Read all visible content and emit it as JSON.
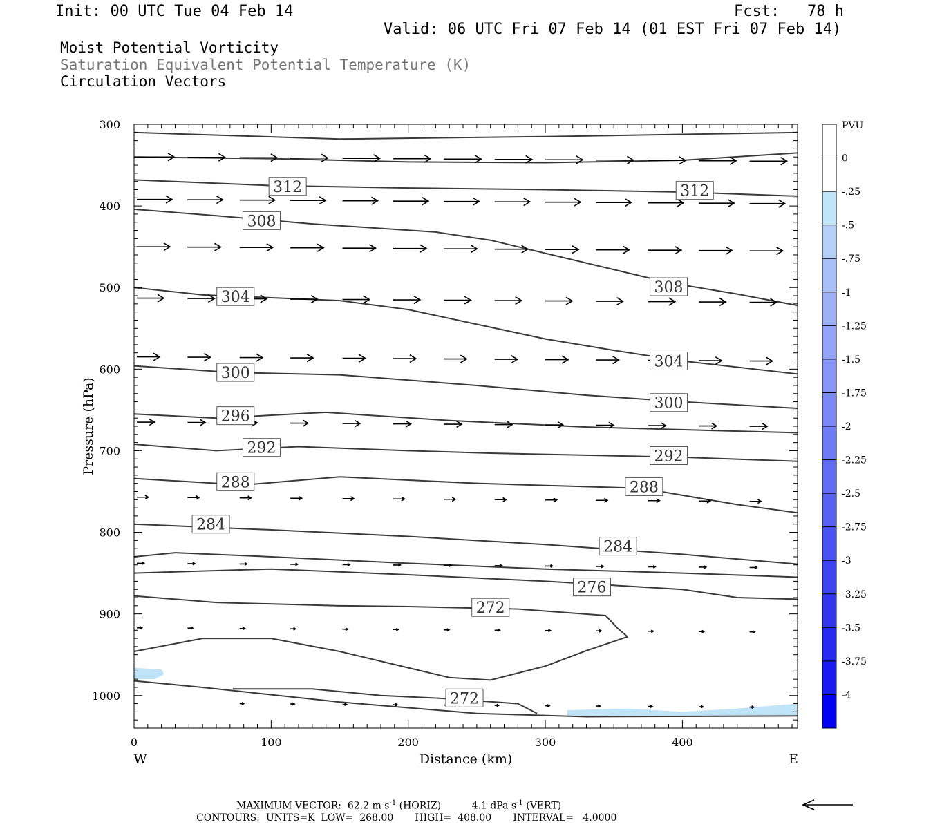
{
  "header": {
    "init": "Init: 00 UTC Tue 04 Feb 14",
    "fcst": "Fcst:   78 h",
    "valid": "Valid: 06 UTC Fri 07 Feb 14 (01 EST Fri 07 Feb 14)",
    "field1": "Moist Potential Vorticity",
    "field2": "Saturation Equivalent Potential Temperature (K)",
    "field3": "Circulation Vectors"
  },
  "colors": {
    "contour": "#3a3a3a",
    "vector": "#000000",
    "pv_light": "#bfe3f7"
  },
  "chart_data": {
    "type": "cross-section",
    "xlabel": "Distance (km)",
    "ylabel": "Pressure (hPa)",
    "xlim": [
      0,
      484
    ],
    "ylim": [
      300,
      1040
    ],
    "x_ticks": [
      0,
      100,
      200,
      300,
      400
    ],
    "y_ticks": [
      300,
      400,
      500,
      600,
      700,
      800,
      900,
      1000
    ],
    "x_end_labels": {
      "left": "W",
      "right": "E"
    },
    "contour_labels": [
      {
        "value": "312",
        "x": 112,
        "p": 376
      },
      {
        "value": "312",
        "x": 409,
        "p": 381
      },
      {
        "value": "308",
        "x": 93,
        "p": 418
      },
      {
        "value": "308",
        "x": 390,
        "p": 499
      },
      {
        "value": "304",
        "x": 74,
        "p": 511
      },
      {
        "value": "304",
        "x": 390,
        "p": 590
      },
      {
        "value": "300",
        "x": 74,
        "p": 604
      },
      {
        "value": "300",
        "x": 390,
        "p": 641
      },
      {
        "value": "296",
        "x": 74,
        "p": 657
      },
      {
        "value": "292",
        "x": 93,
        "p": 696
      },
      {
        "value": "292",
        "x": 390,
        "p": 706
      },
      {
        "value": "288",
        "x": 74,
        "p": 738
      },
      {
        "value": "288",
        "x": 372,
        "p": 744
      },
      {
        "value": "284",
        "x": 56,
        "p": 790
      },
      {
        "value": "284",
        "x": 353,
        "p": 817
      },
      {
        "value": "276",
        "x": 334,
        "p": 867
      },
      {
        "value": "272",
        "x": 260,
        "p": 892
      },
      {
        "value": "272",
        "x": 241,
        "p": 1003
      }
    ],
    "contours": [
      {
        "pts": [
          [
            0,
            310
          ],
          [
            150,
            318
          ],
          [
            300,
            315
          ],
          [
            484,
            310
          ]
        ]
      },
      {
        "pts": [
          [
            0,
            340
          ],
          [
            100,
            342
          ],
          [
            200,
            346
          ],
          [
            300,
            347
          ],
          [
            400,
            344
          ],
          [
            484,
            335
          ]
        ]
      },
      {
        "pts": [
          [
            0,
            368
          ],
          [
            100,
            375
          ],
          [
            200,
            378
          ],
          [
            300,
            380
          ],
          [
            400,
            383
          ],
          [
            484,
            388
          ]
        ]
      },
      {
        "pts": [
          [
            0,
            404
          ],
          [
            60,
            412
          ],
          [
            130,
            422
          ],
          [
            220,
            432
          ],
          [
            260,
            442
          ],
          [
            300,
            458
          ],
          [
            350,
            478
          ],
          [
            390,
            494
          ],
          [
            440,
            508
          ],
          [
            484,
            522
          ]
        ]
      },
      {
        "pts": [
          [
            0,
            500
          ],
          [
            50,
            509
          ],
          [
            150,
            516
          ],
          [
            200,
            527
          ],
          [
            250,
            545
          ],
          [
            300,
            563
          ],
          [
            350,
            577
          ],
          [
            400,
            590
          ],
          [
            484,
            606
          ]
        ]
      },
      {
        "pts": [
          [
            0,
            596
          ],
          [
            70,
            604
          ],
          [
            150,
            607
          ],
          [
            250,
            620
          ],
          [
            330,
            632
          ],
          [
            400,
            640
          ],
          [
            484,
            648
          ]
        ]
      },
      {
        "pts": [
          [
            0,
            655
          ],
          [
            60,
            660
          ],
          [
            140,
            653
          ],
          [
            230,
            663
          ],
          [
            330,
            671
          ],
          [
            484,
            678
          ]
        ]
      },
      {
        "pts": [
          [
            0,
            692
          ],
          [
            60,
            700
          ],
          [
            120,
            695
          ],
          [
            200,
            700
          ],
          [
            260,
            703
          ],
          [
            400,
            708
          ],
          [
            484,
            713
          ]
        ]
      },
      {
        "pts": [
          [
            0,
            734
          ],
          [
            80,
            742
          ],
          [
            150,
            732
          ],
          [
            250,
            740
          ],
          [
            370,
            746
          ],
          [
            440,
            766
          ],
          [
            484,
            776
          ]
        ]
      },
      {
        "pts": [
          [
            0,
            790
          ],
          [
            100,
            797
          ],
          [
            200,
            805
          ],
          [
            300,
            815
          ],
          [
            400,
            827
          ],
          [
            484,
            839
          ]
        ]
      },
      {
        "pts": [
          [
            0,
            830
          ],
          [
            30,
            825
          ],
          [
            100,
            830
          ],
          [
            200,
            838
          ],
          [
            300,
            845
          ],
          [
            400,
            850
          ],
          [
            484,
            855
          ]
        ]
      },
      {
        "pts": [
          [
            0,
            850
          ],
          [
            100,
            845
          ],
          [
            200,
            852
          ],
          [
            300,
            860
          ],
          [
            400,
            870
          ],
          [
            440,
            880
          ],
          [
            484,
            882
          ]
        ]
      },
      {
        "pts": [
          [
            0,
            878
          ],
          [
            60,
            886
          ],
          [
            150,
            890
          ],
          [
            200,
            891
          ],
          [
            280,
            894
          ],
          [
            344,
            902
          ],
          [
            353,
            918
          ],
          [
            360,
            928
          ]
        ]
      },
      {
        "pts": [
          [
            360,
            928
          ],
          [
            330,
            945
          ],
          [
            300,
            964
          ],
          [
            260,
            981
          ],
          [
            230,
            978
          ],
          [
            200,
            966
          ],
          [
            150,
            946
          ],
          [
            100,
            930
          ],
          [
            50,
            930
          ],
          [
            0,
            946
          ]
        ]
      },
      {
        "pts": [
          [
            0,
            982
          ],
          [
            50,
            990
          ],
          [
            150,
            1008
          ],
          [
            250,
            1022
          ],
          [
            330,
            1026
          ],
          [
            484,
            1025
          ]
        ]
      },
      {
        "pts": [
          [
            72,
            992
          ],
          [
            130,
            992
          ],
          [
            180,
            1000
          ],
          [
            230,
            1004
          ],
          [
            280,
            1010
          ],
          [
            294,
            1022
          ]
        ]
      }
    ],
    "shading": [
      {
        "level": "-.25 to 0",
        "pts": [
          [
            0,
            966
          ],
          [
            20,
            968
          ],
          [
            22,
            974
          ],
          [
            15,
            980
          ],
          [
            0,
            980
          ]
        ]
      },
      {
        "level": "-.25 to 0",
        "pts": [
          [
            316,
            1018
          ],
          [
            360,
            1016
          ],
          [
            400,
            1020
          ],
          [
            440,
            1016
          ],
          [
            484,
            1010
          ],
          [
            484,
            1025
          ],
          [
            316,
            1025
          ]
        ]
      }
    ],
    "vector_rows": [
      {
        "p": 340,
        "x": [
          0,
          37,
          75,
          112,
          150,
          187,
          224,
          261,
          298,
          335,
          373,
          410,
          447
        ],
        "len": 36
      },
      {
        "p": 392,
        "x": [
          0,
          37,
          75,
          112,
          150,
          187,
          224,
          261,
          298,
          335,
          373,
          410,
          447
        ],
        "len": 34
      },
      {
        "p": 450,
        "x": [
          0,
          37,
          75,
          112,
          150,
          187,
          224,
          261,
          298,
          335,
          373,
          410,
          447
        ],
        "len": 32
      },
      {
        "p": 513,
        "x": [
          0,
          37,
          75,
          112,
          150,
          187,
          224,
          261,
          298,
          335,
          373,
          410,
          447
        ],
        "len": 26
      },
      {
        "p": 585,
        "x": [
          0,
          37,
          75,
          112,
          150,
          187,
          224,
          261,
          298,
          335,
          373,
          410,
          447
        ],
        "len": 22
      },
      {
        "p": 665,
        "x": [
          0,
          37,
          75,
          112,
          150,
          187,
          224,
          261,
          298,
          335,
          373,
          410,
          447
        ],
        "len": 17
      },
      {
        "p": 757,
        "x": [
          0,
          37,
          75,
          112,
          150,
          187,
          224,
          261,
          298,
          335,
          373,
          410,
          447
        ],
        "len": 11
      },
      {
        "p": 838,
        "x": [
          0,
          37,
          75,
          112,
          150,
          187,
          224,
          261,
          298,
          335,
          373,
          410,
          447
        ],
        "len": 7
      },
      {
        "p": 917,
        "x": [
          0,
          37,
          75,
          112,
          150,
          187,
          224,
          261,
          298,
          335,
          373,
          410,
          447
        ],
        "len": 5
      },
      {
        "p": 1010,
        "x": [
          75,
          112,
          150,
          187,
          224,
          261,
          298,
          335,
          373,
          410,
          447
        ],
        "len": 4
      }
    ],
    "colorbar": {
      "title": "PVU",
      "labels": [
        "0",
        "-.25",
        "-.5",
        "-.75",
        "-1",
        "-1.25",
        "-1.5",
        "-1.75",
        "-2",
        "-2.25",
        "-2.5",
        "-2.75",
        "-3",
        "-3.25",
        "-3.5",
        "-3.75",
        "-4"
      ],
      "colors": [
        "#ffffff",
        "#ffffff",
        "#bfe3f7",
        "#b3d0f7",
        "#a8c0f7",
        "#9eb1f7",
        "#93a3f7",
        "#8796f6",
        "#7b88f5",
        "#6f7bf4",
        "#636df3",
        "#5660f2",
        "#4a52f1",
        "#3e45f0",
        "#3237ef",
        "#252af0",
        "#181bf1",
        "#0000f2"
      ]
    },
    "legend": {
      "max_vector_label": "MAXIMUM VECTOR:",
      "max_vector_horiz_value": "62.2",
      "max_vector_horiz_units": "m s",
      "max_vector_horiz_tag": "(HORIZ)",
      "max_vector_vert_value": "4.1",
      "max_vector_vert_units": "dPa s",
      "max_vector_vert_tag": "(VERT)",
      "exponent": "-1",
      "contours_label": "CONTOURS:",
      "units": "UNITS=K",
      "low": "LOW=",
      "low_value": "268.00",
      "high": "HIGH=",
      "high_value": "408.00",
      "interval": "INTERVAL=",
      "interval_value": "4.0000"
    }
  }
}
